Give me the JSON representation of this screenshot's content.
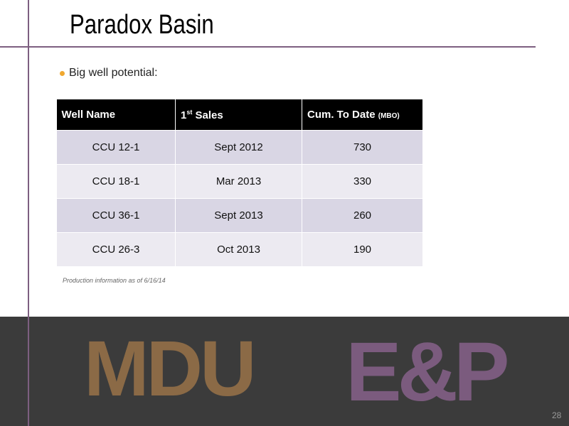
{
  "header": {
    "title": "Paradox Basin"
  },
  "body": {
    "bullet": "Big well potential:",
    "note": "Production information as of 6/16/14"
  },
  "table": {
    "headers": [
      {
        "text": "Well Name"
      },
      {
        "text": "1",
        "sup": "st",
        "after": "Sales"
      },
      {
        "text": "Cum. To Date",
        "unit": "(MBO)"
      }
    ],
    "rows": [
      [
        "CCU 12-1",
        "Sept 2012",
        730
      ],
      [
        "CCU 18-1",
        "Mar 2013",
        330
      ],
      [
        "CCU 36-1",
        "Sept 2013",
        260
      ],
      [
        "CCU 26-3",
        "Oct 2013",
        190
      ]
    ]
  },
  "footer": {
    "logo_left": "MDU",
    "logo_right": "E&P",
    "page": "28"
  }
}
